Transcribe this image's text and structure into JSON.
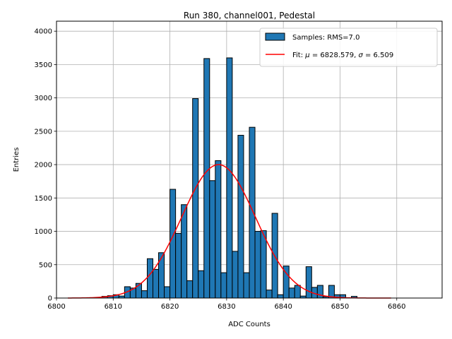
{
  "chart_data": {
    "type": "bar",
    "title": "Run 380, channel001, Pedestal",
    "xlabel": "ADC Counts",
    "ylabel": "Entries",
    "xlim": [
      6800,
      6868
    ],
    "ylim": [
      0,
      4150
    ],
    "xticks": [
      6800,
      6810,
      6820,
      6830,
      6840,
      6850,
      6860
    ],
    "yticks": [
      0,
      500,
      1000,
      1500,
      2000,
      2500,
      3000,
      3500,
      4000
    ],
    "grid": true,
    "legend_position": "top-right",
    "bin_width": 1,
    "bins": [
      [
        6806,
        5
      ],
      [
        6807,
        10
      ],
      [
        6808,
        25
      ],
      [
        6809,
        35
      ],
      [
        6810,
        50
      ],
      [
        6811,
        30
      ],
      [
        6812,
        170
      ],
      [
        6813,
        150
      ],
      [
        6814,
        220
      ],
      [
        6815,
        110
      ],
      [
        6816,
        590
      ],
      [
        6817,
        430
      ],
      [
        6818,
        680
      ],
      [
        6819,
        170
      ],
      [
        6820,
        1630
      ],
      [
        6821,
        970
      ],
      [
        6822,
        1400
      ],
      [
        6823,
        260
      ],
      [
        6824,
        2990
      ],
      [
        6825,
        410
      ],
      [
        6826,
        3590
      ],
      [
        6827,
        1760
      ],
      [
        6828,
        2060
      ],
      [
        6829,
        380
      ],
      [
        6830,
        3600
      ],
      [
        6831,
        700
      ],
      [
        6832,
        2440
      ],
      [
        6833,
        380
      ],
      [
        6834,
        2560
      ],
      [
        6835,
        1000
      ],
      [
        6836,
        1010
      ],
      [
        6837,
        120
      ],
      [
        6838,
        1270
      ],
      [
        6839,
        50
      ],
      [
        6840,
        480
      ],
      [
        6841,
        150
      ],
      [
        6842,
        190
      ],
      [
        6843,
        30
      ],
      [
        6844,
        470
      ],
      [
        6845,
        160
      ],
      [
        6846,
        190
      ],
      [
        6847,
        20
      ],
      [
        6848,
        190
      ],
      [
        6849,
        50
      ],
      [
        6850,
        50
      ],
      [
        6851,
        5
      ],
      [
        6852,
        25
      ]
    ],
    "series": [
      {
        "name": "Samples: RMS=7.0",
        "type": "histogram",
        "color": "#1f77b4"
      },
      {
        "name_prefix": "Fit: ",
        "mu_symbol": "μ",
        "mu_text": " = 6828.579, ",
        "sigma_symbol": "σ",
        "sigma_text": " = 6.509",
        "type": "line",
        "color": "#ff0000"
      }
    ],
    "fit": {
      "mu": 6828.579,
      "sigma": 6.509,
      "amplitude": 2000,
      "x_range": [
        6802,
        6859
      ]
    }
  }
}
